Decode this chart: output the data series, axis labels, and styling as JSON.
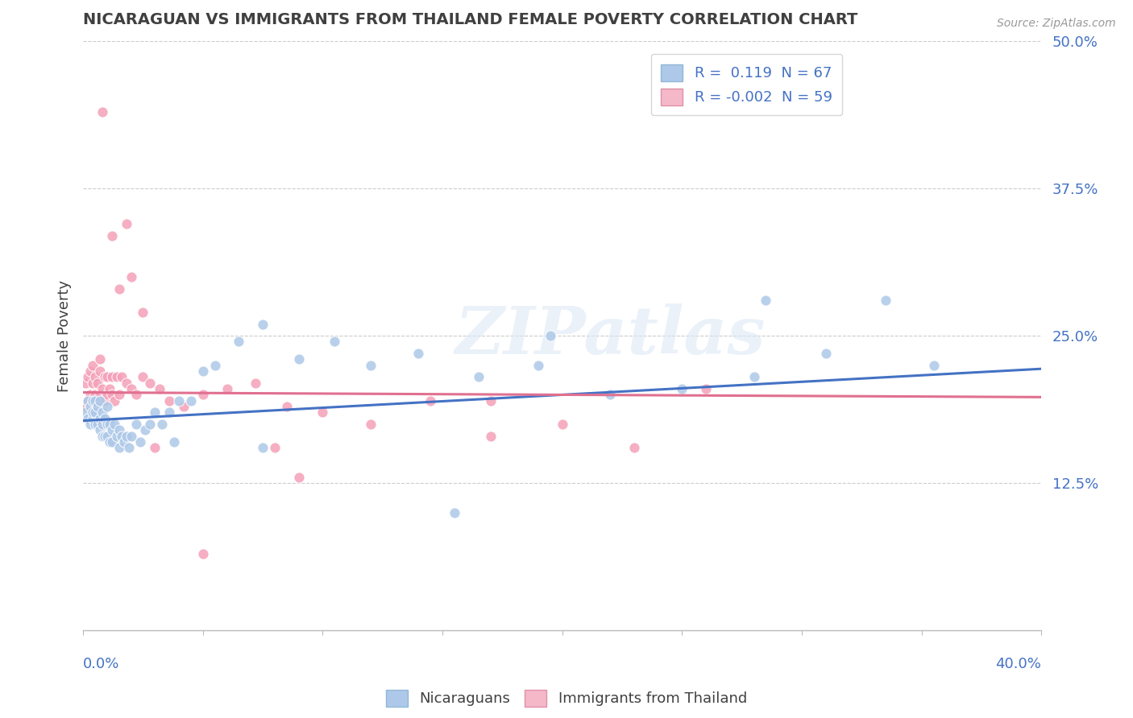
{
  "title": "NICARAGUAN VS IMMIGRANTS FROM THAILAND FEMALE POVERTY CORRELATION CHART",
  "source": "Source: ZipAtlas.com",
  "ylabel": "Female Poverty",
  "xlim": [
    0.0,
    0.4
  ],
  "ylim": [
    0.0,
    0.5
  ],
  "yticks": [
    0.0,
    0.125,
    0.25,
    0.375,
    0.5
  ],
  "ytick_labels": [
    "",
    "12.5%",
    "25.0%",
    "37.5%",
    "50.0%"
  ],
  "watermark": "ZIPatlas",
  "background_color": "#ffffff",
  "grid_color": "#cccccc",
  "trend_blue_color": "#4472c4",
  "trend_pink_color": "#e07090",
  "title_color": "#404040",
  "tick_label_color": "#4472c4",
  "blue_scatter_color": "#adc8e8",
  "pink_scatter_color": "#f4a0b8",
  "legend_blue_face": "#adc8e8",
  "legend_pink_face": "#f4b8c8",
  "blue_R": 0.119,
  "blue_N": 67,
  "pink_R": -0.002,
  "pink_N": 59,
  "blue_x": [
    0.001,
    0.002,
    0.002,
    0.003,
    0.003,
    0.004,
    0.004,
    0.004,
    0.005,
    0.005,
    0.005,
    0.006,
    0.006,
    0.007,
    0.007,
    0.007,
    0.008,
    0.008,
    0.008,
    0.009,
    0.009,
    0.01,
    0.01,
    0.01,
    0.011,
    0.011,
    0.012,
    0.012,
    0.013,
    0.014,
    0.015,
    0.015,
    0.016,
    0.017,
    0.018,
    0.019,
    0.02,
    0.022,
    0.024,
    0.026,
    0.028,
    0.03,
    0.033,
    0.036,
    0.04,
    0.045,
    0.05,
    0.055,
    0.065,
    0.075,
    0.09,
    0.105,
    0.12,
    0.14,
    0.165,
    0.19,
    0.22,
    0.25,
    0.28,
    0.31,
    0.335,
    0.355,
    0.285,
    0.195,
    0.155,
    0.075,
    0.038
  ],
  "blue_y": [
    0.185,
    0.18,
    0.195,
    0.175,
    0.19,
    0.18,
    0.185,
    0.195,
    0.175,
    0.185,
    0.195,
    0.175,
    0.19,
    0.17,
    0.18,
    0.195,
    0.165,
    0.175,
    0.185,
    0.165,
    0.18,
    0.165,
    0.175,
    0.19,
    0.16,
    0.175,
    0.16,
    0.17,
    0.175,
    0.165,
    0.155,
    0.17,
    0.165,
    0.16,
    0.165,
    0.155,
    0.165,
    0.175,
    0.16,
    0.17,
    0.175,
    0.185,
    0.175,
    0.185,
    0.195,
    0.195,
    0.22,
    0.225,
    0.245,
    0.26,
    0.23,
    0.245,
    0.225,
    0.235,
    0.215,
    0.225,
    0.2,
    0.205,
    0.215,
    0.235,
    0.28,
    0.225,
    0.28,
    0.25,
    0.1,
    0.155,
    0.16
  ],
  "pink_x": [
    0.001,
    0.001,
    0.002,
    0.002,
    0.003,
    0.003,
    0.004,
    0.004,
    0.004,
    0.005,
    0.005,
    0.006,
    0.006,
    0.007,
    0.007,
    0.007,
    0.008,
    0.008,
    0.009,
    0.009,
    0.01,
    0.01,
    0.011,
    0.012,
    0.012,
    0.013,
    0.014,
    0.015,
    0.016,
    0.018,
    0.02,
    0.022,
    0.025,
    0.028,
    0.032,
    0.036,
    0.042,
    0.05,
    0.06,
    0.072,
    0.085,
    0.1,
    0.12,
    0.145,
    0.17,
    0.2,
    0.23,
    0.26,
    0.17,
    0.008,
    0.015,
    0.02,
    0.025,
    0.03,
    0.018,
    0.012,
    0.08,
    0.05,
    0.09
  ],
  "pink_y": [
    0.19,
    0.21,
    0.195,
    0.215,
    0.2,
    0.22,
    0.195,
    0.21,
    0.225,
    0.2,
    0.215,
    0.195,
    0.21,
    0.2,
    0.22,
    0.23,
    0.195,
    0.205,
    0.195,
    0.215,
    0.2,
    0.215,
    0.205,
    0.2,
    0.215,
    0.195,
    0.215,
    0.2,
    0.215,
    0.21,
    0.205,
    0.2,
    0.215,
    0.21,
    0.205,
    0.195,
    0.19,
    0.2,
    0.205,
    0.21,
    0.19,
    0.185,
    0.175,
    0.195,
    0.195,
    0.175,
    0.155,
    0.205,
    0.165,
    0.44,
    0.29,
    0.3,
    0.27,
    0.155,
    0.345,
    0.335,
    0.155,
    0.065,
    0.13
  ]
}
